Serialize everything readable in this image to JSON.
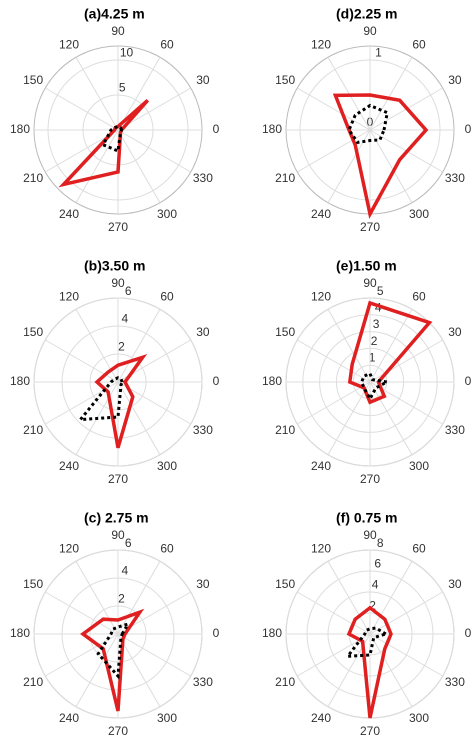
{
  "chart_data": [
    {
      "type": "polar",
      "title": "(a)4.25 m",
      "x": [
        0,
        45,
        90,
        135,
        180,
        225,
        270,
        315
      ],
      "series": [
        {
          "color": "#e02020",
          "style": "solid",
          "values": [
            0.5,
            6,
            0.5,
            0.5,
            0.5,
            11,
            6,
            0.5
          ]
        },
        {
          "color": "#000000",
          "style": "dotted",
          "values": [
            0.5,
            0.5,
            0.5,
            0.5,
            1,
            3,
            3,
            0.5
          ]
        }
      ],
      "rlim": [
        0,
        12
      ],
      "rticks": [
        5,
        10
      ],
      "theta_ticks": [
        0,
        30,
        60,
        90,
        120,
        150,
        180,
        210,
        240,
        270,
        300,
        330
      ]
    },
    {
      "type": "polar",
      "title": "(d)2.25 m",
      "x": [
        0,
        45,
        90,
        135,
        180,
        225,
        270,
        315
      ],
      "series": [
        {
          "color": "#e02020",
          "style": "solid",
          "values": [
            0.8,
            0.6,
            0.5,
            0.7,
            0.3,
            0.3,
            1.2,
            0.6
          ]
        },
        {
          "color": "#000000",
          "style": "dotted",
          "values": [
            0.2,
            0.35,
            0.35,
            0.3,
            0.3,
            0.25,
            0.15,
            0.2
          ]
        }
      ],
      "rlim": [
        0,
        1.2
      ],
      "rticks": [
        0,
        1
      ],
      "theta_ticks": [
        0,
        30,
        60,
        90,
        120,
        150,
        180,
        210,
        240,
        270,
        300,
        330
      ]
    },
    {
      "type": "polar",
      "title": "(b)3.50 m",
      "x": [
        0,
        45,
        90,
        135,
        180,
        225,
        270,
        315
      ],
      "series": [
        {
          "color": "#e02020",
          "style": "solid",
          "values": [
            0.5,
            2.5,
            1.2,
            1,
            1.5,
            1,
            4.7,
            1.5
          ]
        },
        {
          "color": "#000000",
          "style": "dotted",
          "values": [
            0.3,
            0.3,
            0.3,
            0.3,
            0.5,
            3.8,
            2.5,
            0.3
          ]
        }
      ],
      "rlim": [
        0,
        6
      ],
      "rticks": [
        2,
        4,
        6
      ],
      "theta_ticks": [
        0,
        30,
        60,
        90,
        120,
        150,
        180,
        210,
        240,
        270,
        300,
        330
      ]
    },
    {
      "type": "polar",
      "title": "(e)1.50 m",
      "x": [
        0,
        45,
        90,
        135,
        180,
        225,
        270,
        315
      ],
      "series": [
        {
          "color": "#e02020",
          "style": "solid",
          "values": [
            0.5,
            5,
            4.7,
            1.5,
            1.2,
            0.5,
            1.2,
            1.2
          ]
        },
        {
          "color": "#000000",
          "style": "dotted",
          "values": [
            1,
            0.2,
            0.5,
            0.5,
            0.5,
            0.5,
            1,
            0.5
          ]
        }
      ],
      "rlim": [
        0,
        5
      ],
      "rticks": [
        1,
        2,
        3,
        4,
        5
      ],
      "theta_ticks": [
        0,
        30,
        60,
        90,
        120,
        150,
        180,
        210,
        240,
        270,
        300,
        330
      ]
    },
    {
      "type": "polar",
      "title": "(c) 2.75 m",
      "x": [
        0,
        45,
        90,
        135,
        180,
        225,
        270,
        315
      ],
      "series": [
        {
          "color": "#e02020",
          "style": "solid",
          "values": [
            0.5,
            2.2,
            1,
            1.5,
            2.5,
            1.5,
            5.5,
            0.5
          ]
        },
        {
          "color": "#000000",
          "style": "dotted",
          "values": [
            0.3,
            1,
            0.5,
            0.5,
            0.5,
            2,
            3,
            0.3
          ]
        }
      ],
      "rlim": [
        0,
        6
      ],
      "rticks": [
        2,
        4,
        6
      ],
      "theta_ticks": [
        0,
        30,
        60,
        90,
        120,
        150,
        180,
        210,
        240,
        270,
        300,
        330
      ]
    },
    {
      "type": "polar",
      "title": "(f) 0.75 m",
      "x": [
        0,
        45,
        90,
        135,
        180,
        225,
        270,
        315
      ],
      "series": [
        {
          "color": "#e02020",
          "style": "solid",
          "values": [
            2,
            2,
            2.5,
            2,
            2,
            1,
            8,
            2
          ]
        },
        {
          "color": "#000000",
          "style": "dotted",
          "values": [
            1.5,
            0.8,
            0.5,
            0.5,
            0.5,
            3,
            2,
            0.5
          ]
        }
      ],
      "rlim": [
        0,
        8
      ],
      "rticks": [
        2,
        4,
        6,
        8
      ],
      "theta_ticks": [
        0,
        30,
        60,
        90,
        120,
        150,
        180,
        210,
        240,
        270,
        300,
        330
      ]
    }
  ]
}
